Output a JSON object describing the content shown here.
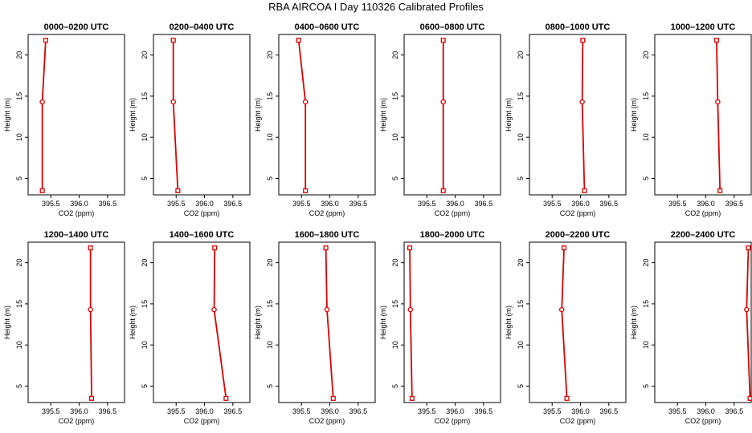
{
  "title": "RBA AIRCOA I  Day 110326  Calibrated Profiles",
  "colors": {
    "line": "#dd0000",
    "axis": "#000000"
  },
  "chart_data": {
    "type": "line",
    "xlabel": "CO2 (ppm)",
    "ylabel": "Height (m)",
    "xlim": [
      395.1,
      396.8
    ],
    "ylim": [
      3.0,
      22.5
    ],
    "xticks": [
      395.5,
      396.0,
      396.5
    ],
    "xtick_labels": [
      "395.5",
      "396.0",
      "396.5"
    ],
    "yticks": [
      5,
      10,
      15,
      20
    ],
    "ytick_labels": [
      "5",
      "10",
      "15",
      "20"
    ],
    "heights": [
      3.5,
      14.3,
      21.8
    ],
    "panels": [
      {
        "title": "0000–0200 UTC",
        "co2": [
          395.35,
          395.35,
          395.41
        ]
      },
      {
        "title": "0200–0400 UTC",
        "co2": [
          395.53,
          395.45,
          395.45
        ]
      },
      {
        "title": "0400–0600 UTC",
        "co2": [
          395.57,
          395.57,
          395.45
        ]
      },
      {
        "title": "0600–0800 UTC",
        "co2": [
          395.79,
          395.79,
          395.79
        ]
      },
      {
        "title": "0800–1000 UTC",
        "co2": [
          396.07,
          396.03,
          396.04
        ]
      },
      {
        "title": "1000–1200 UTC",
        "co2": [
          396.25,
          396.21,
          396.19
        ]
      },
      {
        "title": "1200–1400 UTC",
        "co2": [
          396.22,
          396.2,
          396.2
        ]
      },
      {
        "title": "1400–1600 UTC",
        "co2": [
          396.38,
          396.17,
          396.18
        ]
      },
      {
        "title": "1600–1800 UTC",
        "co2": [
          396.06,
          395.95,
          395.93
        ]
      },
      {
        "title": "1800–2000 UTC",
        "co2": [
          395.24,
          395.21,
          395.2
        ]
      },
      {
        "title": "2000–2200 UTC",
        "co2": [
          395.76,
          395.67,
          395.71
        ]
      },
      {
        "title": "2200–2400 UTC",
        "co2": [
          396.78,
          396.72,
          396.75
        ]
      }
    ]
  }
}
